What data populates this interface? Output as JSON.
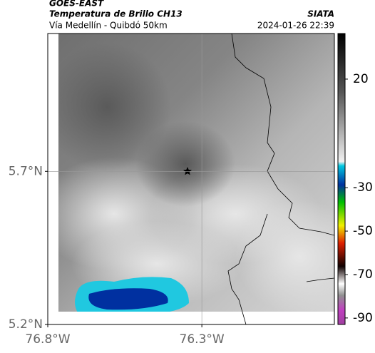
{
  "header": {
    "title": "GOES-EAST",
    "subtitle": "Temperatura de Brillo CH13",
    "source": "SIATA",
    "route": "Vía Medellín - Quibdó 50km",
    "timestamp": "2024-01-26 22:39"
  },
  "map": {
    "xlim": [
      -76.8,
      -75.87
    ],
    "ylim": [
      5.2,
      6.15
    ],
    "xticks": [
      {
        "value": -76.8,
        "label": "76.8°W"
      },
      {
        "value": -76.3,
        "label": "76.3°W"
      }
    ],
    "yticks": [
      {
        "value": 5.7,
        "label": "5.7°N"
      },
      {
        "value": 5.2,
        "label": "5.2°N"
      }
    ],
    "grid": true
  },
  "colorbar": {
    "lim": [
      -93,
      41
    ],
    "ticks": [
      20,
      -30,
      -50,
      -70,
      -90
    ]
  }
}
